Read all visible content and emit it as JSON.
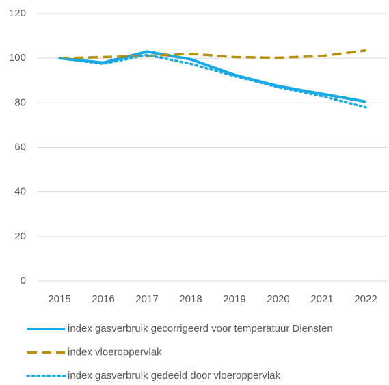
{
  "chart_data": {
    "type": "line",
    "categories": [
      "2015",
      "2016",
      "2017",
      "2018",
      "2019",
      "2020",
      "2021",
      "2022"
    ],
    "series": [
      {
        "name": "index gasverbruik gecorrigeerd voor temperatuur Diensten",
        "color": "#19a9e6",
        "style": "solid",
        "values": [
          100,
          98,
          103,
          99.5,
          92.5,
          87.5,
          84,
          80.5
        ]
      },
      {
        "name": "index vloeroppervlak",
        "color": "#b8900c",
        "style": "dashed",
        "values": [
          100,
          100.5,
          101,
          102,
          100.5,
          100.2,
          101,
          103.5
        ]
      },
      {
        "name": "index gasverbruik gedeeld door vloeroppervlak",
        "color": "#19a9e6",
        "style": "dotted",
        "values": [
          100,
          97.5,
          101.5,
          97.5,
          92,
          87,
          83,
          78
        ]
      }
    ],
    "ylim": [
      0,
      120
    ],
    "yticks": [
      0,
      20,
      40,
      60,
      80,
      100,
      120
    ],
    "grid": true
  }
}
